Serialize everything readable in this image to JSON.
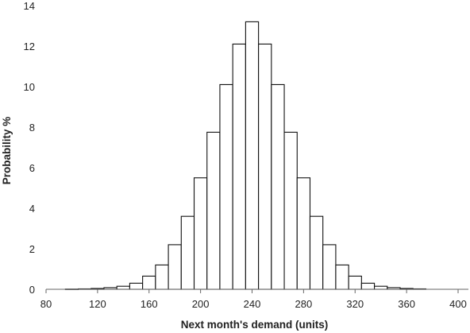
{
  "chart_data": {
    "type": "bar",
    "title": "",
    "xlabel": "Next month's demand (units)",
    "ylabel": "Probability %",
    "xlim": [
      80,
      400
    ],
    "ylim": [
      0,
      14
    ],
    "xticks": [
      80,
      120,
      160,
      200,
      240,
      280,
      320,
      360,
      400
    ],
    "yticks": [
      0,
      2,
      4,
      6,
      8,
      10,
      12,
      14
    ],
    "bin_width": 10,
    "bins": [
      {
        "x": 90,
        "value": 0.0
      },
      {
        "x": 100,
        "value": 0.01
      },
      {
        "x": 110,
        "value": 0.02
      },
      {
        "x": 120,
        "value": 0.04
      },
      {
        "x": 130,
        "value": 0.08
      },
      {
        "x": 140,
        "value": 0.15
      },
      {
        "x": 150,
        "value": 0.3
      },
      {
        "x": 160,
        "value": 0.65
      },
      {
        "x": 170,
        "value": 1.2
      },
      {
        "x": 180,
        "value": 2.2
      },
      {
        "x": 190,
        "value": 3.6
      },
      {
        "x": 200,
        "value": 5.5
      },
      {
        "x": 210,
        "value": 7.75
      },
      {
        "x": 220,
        "value": 10.1
      },
      {
        "x": 230,
        "value": 12.1
      },
      {
        "x": 240,
        "value": 13.2
      },
      {
        "x": 250,
        "value": 12.1
      },
      {
        "x": 260,
        "value": 10.1
      },
      {
        "x": 270,
        "value": 7.75
      },
      {
        "x": 280,
        "value": 5.5
      },
      {
        "x": 290,
        "value": 3.6
      },
      {
        "x": 300,
        "value": 2.2
      },
      {
        "x": 310,
        "value": 1.2
      },
      {
        "x": 320,
        "value": 0.65
      },
      {
        "x": 330,
        "value": 0.3
      },
      {
        "x": 340,
        "value": 0.15
      },
      {
        "x": 350,
        "value": 0.08
      },
      {
        "x": 360,
        "value": 0.04
      },
      {
        "x": 370,
        "value": 0.02
      }
    ],
    "grid": false,
    "legend": "none"
  }
}
